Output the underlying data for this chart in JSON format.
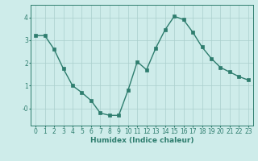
{
  "x": [
    0,
    1,
    2,
    3,
    4,
    5,
    6,
    7,
    8,
    9,
    10,
    11,
    12,
    13,
    14,
    15,
    16,
    17,
    18,
    19,
    20,
    21,
    22,
    23
  ],
  "y": [
    3.2,
    3.2,
    2.6,
    1.75,
    1.0,
    0.7,
    0.35,
    -0.2,
    -0.3,
    -0.3,
    0.8,
    2.05,
    1.7,
    2.65,
    3.45,
    4.05,
    3.9,
    3.35,
    2.7,
    2.2,
    1.8,
    1.6,
    1.4,
    1.25
  ],
  "line_color": "#2e7d6e",
  "marker": "s",
  "markersize": 2.2,
  "linewidth": 1.0,
  "bg_color": "#ceecea",
  "grid_color": "#aacfcc",
  "axis_color": "#2e7d6e",
  "xlabel": "Humidex (Indice chaleur)",
  "xlabel_fontsize": 6.5,
  "ytick_labels": [
    "-0",
    "1",
    "2",
    "3",
    "4"
  ],
  "yticks": [
    0,
    1,
    2,
    3,
    4
  ],
  "ylim": [
    -0.75,
    4.55
  ],
  "xlim": [
    -0.5,
    23.5
  ],
  "xticks": [
    0,
    1,
    2,
    3,
    4,
    5,
    6,
    7,
    8,
    9,
    10,
    11,
    12,
    13,
    14,
    15,
    16,
    17,
    18,
    19,
    20,
    21,
    22,
    23
  ],
  "tick_fontsize": 5.5
}
